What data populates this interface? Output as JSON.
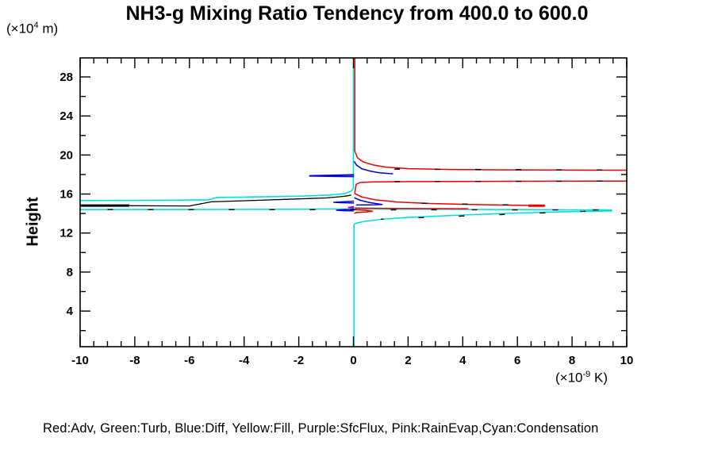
{
  "title": "NH3-g Mixing Ratio Tendency from 400.0 to 600.0",
  "y_unit": {
    "prefix": "(×10",
    "sup": "4",
    "suffix": " m)"
  },
  "x_unit": {
    "prefix": "(×10",
    "sup": "-9",
    "suffix": " K)"
  },
  "y_axis_label": "Height",
  "legend": {
    "text": "Red:Adv, Green:Turb, Blue:Diff, Yellow:Fill, Purple:SfcFlux, Pink:RainEvap,Cyan:Condensation"
  },
  "colors": {
    "red": "#ee0000",
    "blue": "#0000dd",
    "cyan": "#00e0e0",
    "purple": "#9900aa",
    "black": "#000000"
  },
  "chart_data": {
    "type": "line",
    "title": "NH3-g Mixing Ratio Tendency from 400.0 to 600.0",
    "xlabel": "(x10^-9 K)",
    "ylabel": "Height (x10^4 m)",
    "xlim": [
      -10,
      10
    ],
    "ylim": [
      0.35,
      29.95
    ],
    "x_major_ticks": [
      -10,
      -8,
      -6,
      -4,
      -2,
      0,
      2,
      4,
      6,
      8,
      10
    ],
    "x_minor_step": 0.5,
    "y_major_ticks": [
      4,
      8,
      12,
      16,
      20,
      24,
      28
    ],
    "y_minor_step": 2,
    "grid": false,
    "legend_position": "bottom",
    "legend_map": [
      {
        "color": "Red",
        "label": "Adv"
      },
      {
        "color": "Green",
        "label": "Turb"
      },
      {
        "color": "Blue",
        "label": "Diff"
      },
      {
        "color": "Yellow",
        "label": "Fill"
      },
      {
        "color": "Purple",
        "label": "SfcFlux"
      },
      {
        "color": "Pink",
        "label": "RainEvap"
      },
      {
        "color": "Cyan",
        "label": "Condensation"
      }
    ],
    "series": [
      {
        "name": "condensation-zero-line-and-upper-hook",
        "color_key": "cyan",
        "width": 1.6,
        "points": [
          [
            0,
            29.9
          ],
          [
            0,
            16.6
          ],
          [
            -0.08,
            16.3
          ],
          [
            -0.3,
            16.05
          ],
          [
            -0.8,
            15.9
          ],
          [
            -2,
            15.78
          ],
          [
            -3.5,
            15.7
          ],
          [
            -5,
            15.65
          ],
          [
            -5.3,
            15.4
          ],
          [
            -7,
            15.36
          ],
          [
            -10,
            15.33
          ]
        ]
      },
      {
        "name": "condensation-flat-tongue-return",
        "color_key": "cyan",
        "width": 1.6,
        "points": [
          [
            -10,
            14.4
          ],
          [
            -5,
            14.42
          ],
          [
            -1,
            14.45
          ],
          [
            0,
            14.46
          ],
          [
            2,
            14.44
          ],
          [
            4,
            14.42
          ],
          [
            6,
            14.4
          ],
          [
            8,
            14.38
          ],
          [
            9.4,
            14.35
          ],
          [
            9.45,
            14.27
          ],
          [
            8,
            14.2
          ],
          [
            6,
            14.05
          ],
          [
            4,
            13.85
          ],
          [
            2,
            13.6
          ],
          [
            1,
            13.4
          ],
          [
            0.4,
            13.2
          ],
          [
            0.1,
            13.0
          ],
          [
            0.02,
            12.88
          ],
          [
            0.02,
            0.4
          ]
        ]
      },
      {
        "name": "condensation-tongue-tip",
        "color_key": "cyan",
        "width": 2.5,
        "points": [
          [
            8.7,
            14.37
          ],
          [
            9.45,
            14.31
          ]
        ]
      },
      {
        "name": "adv-upper",
        "color_key": "red",
        "width": 1.5,
        "points": [
          [
            0.05,
            29.9
          ],
          [
            0.05,
            20.4
          ],
          [
            0.15,
            19.7
          ],
          [
            0.35,
            19.3
          ],
          [
            0.7,
            19.0
          ],
          [
            1.2,
            18.75
          ],
          [
            2,
            18.6
          ],
          [
            3.5,
            18.52
          ],
          [
            5.5,
            18.48
          ],
          [
            8,
            18.45
          ],
          [
            10,
            18.44
          ]
        ]
      },
      {
        "name": "adv-mid-and-lower-tongue",
        "color_key": "red",
        "width": 1.5,
        "points": [
          [
            10,
            17.33
          ],
          [
            7,
            17.31
          ],
          [
            4,
            17.29
          ],
          [
            2,
            17.27
          ],
          [
            0.8,
            17.24
          ],
          [
            0.25,
            17.18
          ],
          [
            0.1,
            17.0
          ],
          [
            0.06,
            16.3
          ],
          [
            0.05,
            16.05
          ],
          [
            0.3,
            15.7
          ],
          [
            0.8,
            15.4
          ],
          [
            1.6,
            15.18
          ],
          [
            2.8,
            15.03
          ],
          [
            4.3,
            14.93
          ],
          [
            5.8,
            14.86
          ],
          [
            7.0,
            14.82
          ],
          [
            6.5,
            14.79
          ]
        ]
      },
      {
        "name": "adv-tongue-tip",
        "color_key": "red",
        "width": 3,
        "points": [
          [
            6.4,
            14.81
          ],
          [
            7.0,
            14.81
          ]
        ]
      },
      {
        "name": "adv-small-line",
        "color_key": "red",
        "width": 1.5,
        "points": [
          [
            0.05,
            14.56
          ],
          [
            1.5,
            14.52
          ],
          [
            3,
            14.5
          ],
          [
            4.2,
            14.49
          ]
        ]
      },
      {
        "name": "adv-small-bulge",
        "color_key": "red",
        "width": 1.5,
        "points": [
          [
            0.05,
            14.4
          ],
          [
            0.45,
            14.33
          ],
          [
            0.7,
            14.24
          ],
          [
            0.45,
            14.15
          ],
          [
            0.12,
            14.1
          ],
          [
            0.03,
            14.02
          ]
        ]
      },
      {
        "name": "diff-upper",
        "color_key": "blue",
        "width": 1.5,
        "points": [
          [
            0.03,
            19.35
          ],
          [
            0.12,
            18.95
          ],
          [
            0.3,
            18.6
          ],
          [
            0.6,
            18.35
          ],
          [
            0.95,
            18.18
          ],
          [
            1.3,
            18.1
          ],
          [
            1.45,
            18.08
          ]
        ]
      },
      {
        "name": "diff-left-spike",
        "color_key": "blue",
        "width": 1.8,
        "points": [
          [
            0.02,
            17.97
          ],
          [
            -0.7,
            17.92
          ],
          [
            -1.45,
            17.88
          ],
          [
            -1.6,
            17.86
          ],
          [
            -1.2,
            17.83
          ],
          [
            -0.4,
            17.8
          ],
          [
            0.02,
            17.79
          ]
        ]
      },
      {
        "name": "diff-lower-right",
        "color_key": "blue",
        "width": 1.5,
        "points": [
          [
            0.03,
            15.62
          ],
          [
            0.25,
            15.35
          ],
          [
            0.6,
            15.12
          ],
          [
            0.95,
            14.97
          ],
          [
            1.05,
            14.92
          ],
          [
            0.6,
            14.89
          ],
          [
            0.1,
            14.87
          ]
        ]
      },
      {
        "name": "diff-lower-left-spike-1",
        "color_key": "blue",
        "width": 1.5,
        "points": [
          [
            0.02,
            15.26
          ],
          [
            -0.4,
            15.2
          ],
          [
            -0.72,
            15.15
          ],
          [
            -0.45,
            15.11
          ],
          [
            0.02,
            15.08
          ]
        ]
      },
      {
        "name": "diff-lower-left-spike-2",
        "color_key": "blue",
        "width": 1.5,
        "points": [
          [
            0.02,
            14.44
          ],
          [
            -0.35,
            14.39
          ],
          [
            -0.62,
            14.34
          ],
          [
            -0.32,
            14.29
          ],
          [
            0.02,
            14.27
          ]
        ]
      },
      {
        "name": "sfcflux-spike",
        "color_key": "purple",
        "width": 1.5,
        "points": [
          [
            0.02,
            14.7
          ],
          [
            -0.18,
            14.62
          ],
          [
            0.02,
            14.57
          ]
        ]
      },
      {
        "name": "total-left-thick",
        "color_key": "black",
        "width": 3,
        "points": [
          [
            -10,
            14.82
          ],
          [
            -8.2,
            14.82
          ]
        ]
      },
      {
        "name": "total-left-curve",
        "color_key": "black",
        "width": 1.3,
        "points": [
          [
            -8.2,
            14.8
          ],
          [
            -6,
            14.78
          ],
          [
            -5.2,
            15.2
          ],
          [
            -3.5,
            15.35
          ],
          [
            -2,
            15.5
          ],
          [
            -1,
            15.6
          ],
          [
            -0.5,
            15.72
          ],
          [
            -0.2,
            15.82
          ],
          [
            -0.08,
            15.9
          ]
        ]
      }
    ],
    "dash_overlays": [
      {
        "name": "total-dash-on-adv-upper",
        "points": [
          [
            1.5,
            18.55
          ],
          [
            10,
            18.45
          ]
        ]
      },
      {
        "name": "total-dash-on-adv-mid",
        "points": [
          [
            1.5,
            17.27
          ],
          [
            9.5,
            17.32
          ]
        ]
      },
      {
        "name": "total-dash-on-adv-lower",
        "points": [
          [
            2.5,
            15.05
          ],
          [
            6.5,
            14.84
          ]
        ]
      },
      {
        "name": "total-dash-on-cyan-flat",
        "points": [
          [
            -9,
            14.41
          ],
          [
            9,
            14.37
          ]
        ]
      },
      {
        "name": "total-dash-on-cyan-return",
        "points": [
          [
            8.5,
            14.23
          ],
          [
            1,
            13.42
          ]
        ]
      }
    ]
  }
}
